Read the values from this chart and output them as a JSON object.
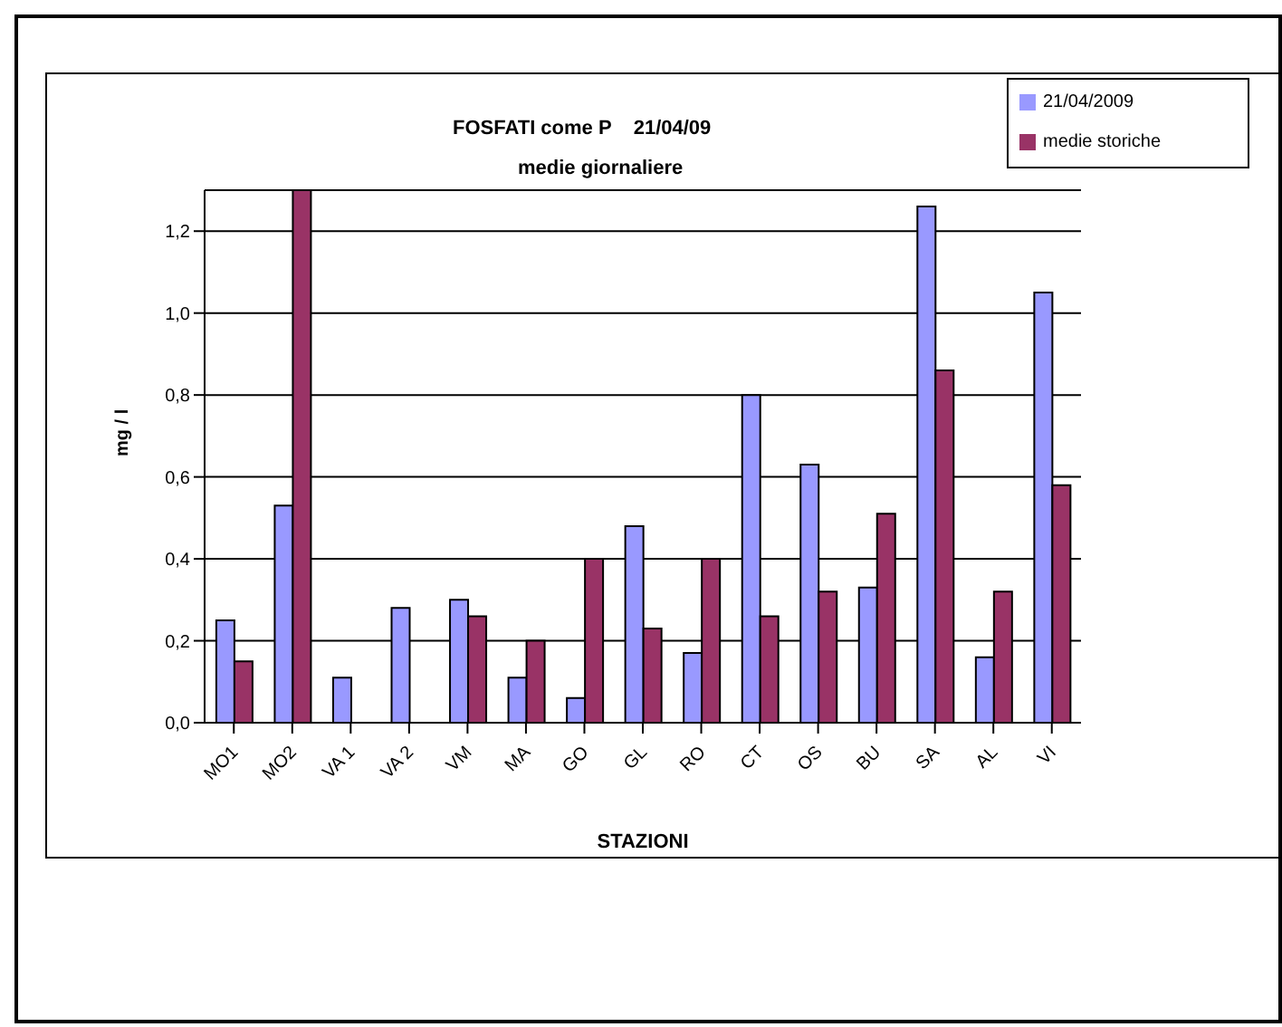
{
  "chart_data": {
    "type": "bar",
    "title": "FOSFATI come P    21/04/09",
    "subtitle": "medie giornaliere",
    "xlabel": "STAZIONI",
    "ylabel": "mg / l",
    "categories": [
      "MO1",
      "MO2",
      "VA 1",
      "VA 2",
      "VM",
      "MA",
      "GO",
      "GL",
      "RO",
      "CT",
      "OS",
      "BU",
      "SA",
      "AL",
      "VI"
    ],
    "series": [
      {
        "name": "21/04/2009",
        "color": "#9999ff",
        "values": [
          0.25,
          0.53,
          0.11,
          0.28,
          0.3,
          0.11,
          0.06,
          0.48,
          0.17,
          0.8,
          0.63,
          0.33,
          1.26,
          0.16,
          1.05
        ]
      },
      {
        "name": "medie storiche",
        "color": "#993366",
        "values": [
          0.15,
          1.3,
          null,
          null,
          0.26,
          0.2,
          0.4,
          0.23,
          0.4,
          0.26,
          0.32,
          0.51,
          0.86,
          0.32,
          0.58
        ]
      }
    ],
    "ylim": [
      0,
      1.3
    ],
    "yticks": [
      {
        "value": 0,
        "label": "0,0"
      },
      {
        "value": 0.2,
        "label": "0,2"
      },
      {
        "value": 0.4,
        "label": "0,4"
      },
      {
        "value": 0.6,
        "label": "0,6"
      },
      {
        "value": 0.8,
        "label": "0,8"
      },
      {
        "value": 1.0,
        "label": "1,0"
      },
      {
        "value": 1.2,
        "label": "1,2"
      }
    ],
    "grid": "y",
    "legend": "top right"
  }
}
